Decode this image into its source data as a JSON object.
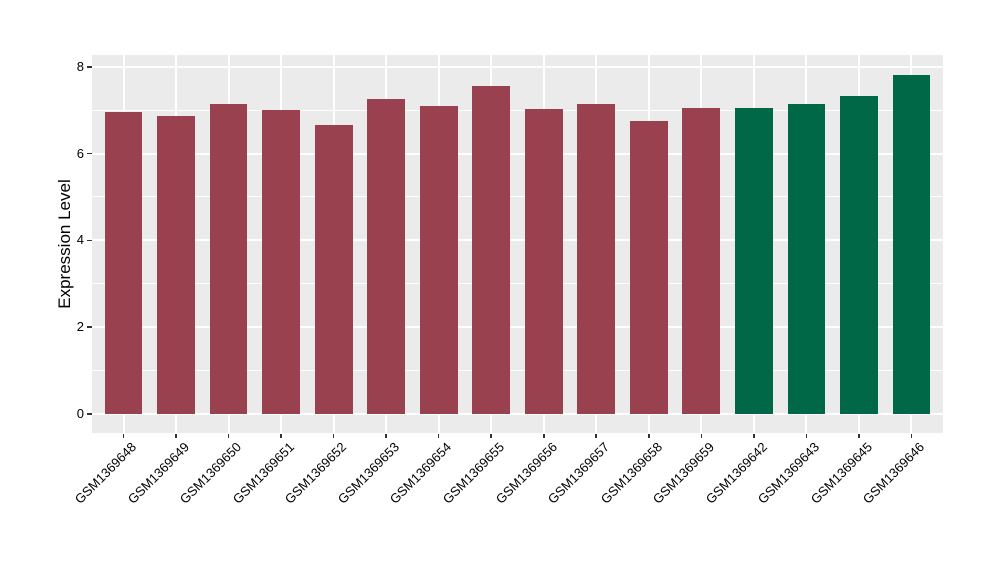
{
  "chart_data": {
    "type": "bar",
    "title": "",
    "xlabel": "",
    "ylabel": "Expression Level",
    "ylim": [
      0,
      8
    ],
    "yticks": [
      0,
      2,
      4,
      6,
      8
    ],
    "minor_yticks": [
      1,
      3,
      5,
      7
    ],
    "grid": "on",
    "legend_position": "none",
    "categories": [
      "GSM1369648",
      "GSM1369649",
      "GSM1369650",
      "GSM1369651",
      "GSM1369652",
      "GSM1369653",
      "GSM1369654",
      "GSM1369655",
      "GSM1369656",
      "GSM1369657",
      "GSM1369658",
      "GSM1369659",
      "GSM1369642",
      "GSM1369643",
      "GSM1369645",
      "GSM1369646"
    ],
    "values": [
      6.95,
      6.87,
      7.15,
      7.0,
      6.65,
      7.25,
      7.1,
      7.55,
      7.03,
      7.15,
      6.75,
      7.05,
      7.05,
      7.15,
      7.33,
      7.8
    ],
    "groups": [
      "group1",
      "group1",
      "group1",
      "group1",
      "group1",
      "group1",
      "group1",
      "group1",
      "group1",
      "group1",
      "group1",
      "group1",
      "group2",
      "group2",
      "group2",
      "group2"
    ],
    "group_colors": {
      "group1": "#9A4150",
      "group2": "#006747"
    },
    "panel_background": "#EBEBEB",
    "grid_color": "#FFFFFF",
    "axis_text_color": "#000000",
    "tick_color": "#333333"
  }
}
